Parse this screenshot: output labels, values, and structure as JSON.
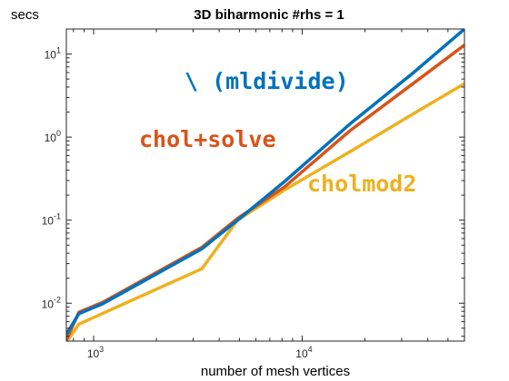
{
  "chart_data": {
    "type": "line",
    "title": "3D biharmonic #rhs = 1",
    "xlabel": "number of mesh vertices",
    "ylabel": "secs",
    "xscale": "log",
    "yscale": "log",
    "xlim": [
      740,
      60000
    ],
    "ylim": [
      0.0035,
      20
    ],
    "grid": false,
    "xticks": [
      {
        "base": "10",
        "exp": "3",
        "value": 1000
      },
      {
        "base": "10",
        "exp": "4",
        "value": 10000
      }
    ],
    "yticks": [
      {
        "base": "10",
        "exp": "-2",
        "value": 0.01
      },
      {
        "base": "10",
        "exp": "-1",
        "value": 0.1
      },
      {
        "base": "10",
        "exp": "0",
        "value": 1
      },
      {
        "base": "10",
        "exp": "1",
        "value": 10
      }
    ],
    "series": [
      {
        "name": "\\ (mldivide)",
        "color": "#0072BD",
        "x": [
          740,
          850,
          1100,
          3300,
          4900,
          8200,
          17000,
          34000,
          60000
        ],
        "y": [
          0.0042,
          0.0075,
          0.0098,
          0.045,
          0.1,
          0.29,
          1.45,
          5.9,
          20
        ]
      },
      {
        "name": "chol+solve",
        "color": "#D95319",
        "x": [
          740,
          850,
          1100,
          3300,
          4900,
          8200,
          17000,
          34000,
          60000
        ],
        "y": [
          0.0036,
          0.0078,
          0.0102,
          0.047,
          0.105,
          0.25,
          1.2,
          4.4,
          12.8
        ]
      },
      {
        "name": "cholmod2",
        "color": "#EDB120",
        "x": [
          740,
          850,
          1100,
          3300,
          4900,
          8200,
          17000,
          34000,
          60000
        ],
        "y": [
          0.0034,
          0.0056,
          0.0075,
          0.026,
          0.1,
          0.23,
          0.67,
          1.9,
          4.4
        ]
      }
    ]
  }
}
